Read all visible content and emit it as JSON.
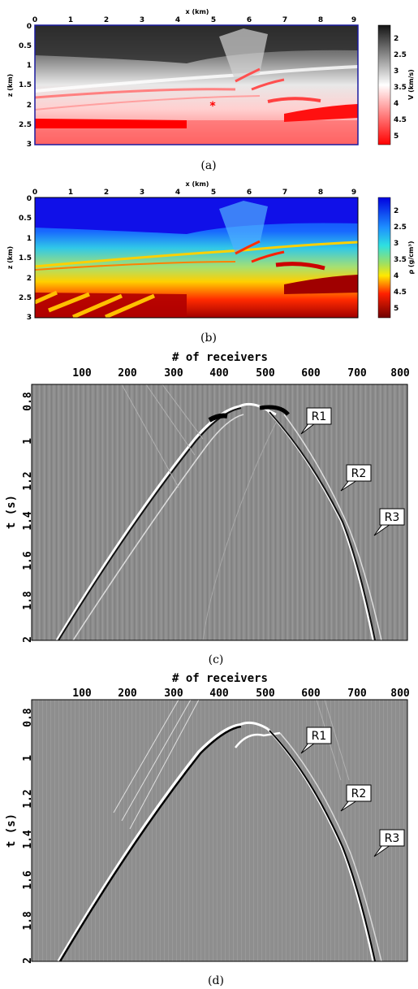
{
  "captions": {
    "a": "(a)",
    "b": "(b)",
    "c": "(c)",
    "d": "(d)"
  },
  "panel_a": {
    "xlabel": "x (km)",
    "ylabel": "z (km)",
    "cbar_label": "V (km/s)",
    "x_ticks": [
      "0",
      "1",
      "2",
      "3",
      "4",
      "5",
      "6",
      "7",
      "8",
      "9"
    ],
    "y_ticks": [
      "0",
      "0.5",
      "1",
      "1.5",
      "2",
      "2.5",
      "3"
    ],
    "cbar_ticks": [
      "2",
      "2.5",
      "3",
      "3.5",
      "4",
      "4.5",
      "5"
    ],
    "source_marker": "*",
    "colors": {
      "low": "#1a1a1a",
      "mid": "#ffffff",
      "high": "#ff0000",
      "frame": "#1a1a9e"
    }
  },
  "panel_b": {
    "xlabel": "x (km)",
    "ylabel": "z (km)",
    "cbar_label": "ρ (g/cm³)",
    "x_ticks": [
      "0",
      "1",
      "2",
      "3",
      "4",
      "5",
      "6",
      "7",
      "8",
      "9"
    ],
    "y_ticks": [
      "0",
      "0.5",
      "1",
      "1.5",
      "2",
      "2.5",
      "3"
    ],
    "cbar_ticks": [
      "2",
      "2.5",
      "3",
      "3.5",
      "4",
      "4.5",
      "5"
    ],
    "colors": {
      "low": "#1010f0",
      "cyan": "#2ec8e8",
      "green": "#70d060",
      "yellow": "#ffe000",
      "red": "#e81010",
      "high": "#7a0000"
    }
  },
  "panel_c": {
    "xlabel": "# of receivers",
    "ylabel": "t (s)",
    "x_ticks": [
      "100",
      "200",
      "300",
      "400",
      "500",
      "600",
      "700",
      "800"
    ],
    "y_ticks": [
      "0.8",
      "1",
      "1.2",
      "1.4",
      "1.6",
      "1.8",
      "2"
    ],
    "callouts": [
      "R1",
      "R2",
      "R3"
    ]
  },
  "panel_d": {
    "xlabel": "# of receivers",
    "ylabel": "t (s)",
    "x_ticks": [
      "100",
      "200",
      "300",
      "400",
      "500",
      "600",
      "700",
      "800"
    ],
    "y_ticks": [
      "0.8",
      "1",
      "1.2",
      "1.4",
      "1.6",
      "1.8",
      "2"
    ],
    "callouts": [
      "R1",
      "R2",
      "R3"
    ]
  }
}
